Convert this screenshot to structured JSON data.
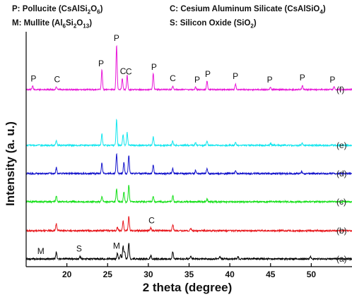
{
  "legend": [
    {
      "key": "P",
      "name": "Pollucite",
      "formula_parts": [
        [
          "CsAlSi",
          "n"
        ],
        [
          "2",
          "s"
        ],
        [
          "O",
          "n"
        ],
        [
          "6",
          "s"
        ]
      ]
    },
    {
      "key": "C",
      "name": "Cesium Aluminum Silicate",
      "formula_parts": [
        [
          "CsAlSiO",
          "n"
        ],
        [
          "4",
          "s"
        ]
      ]
    },
    {
      "key": "M",
      "name": "Mullite",
      "formula_parts": [
        [
          "Al",
          "n"
        ],
        [
          "6",
          "s"
        ],
        [
          "Si",
          "n"
        ],
        [
          "2",
          "s"
        ],
        [
          "O",
          "n"
        ],
        [
          "13",
          "s"
        ]
      ]
    },
    {
      "key": "S",
      "name": "Silicon Oxide",
      "formula_parts": [
        [
          "SiO",
          "n"
        ],
        [
          "2",
          "s"
        ]
      ]
    }
  ],
  "chart_data": {
    "type": "line",
    "xlabel": "2 theta (degree)",
    "ylabel": "Intensity (a. u.)",
    "xlim": [
      15,
      55
    ],
    "xticks": [
      20,
      25,
      30,
      35,
      40,
      45,
      50
    ],
    "y_ticks_shown": false,
    "series": [
      {
        "name": "(a)",
        "color": "#000000",
        "noise_amp": 1.0,
        "peaks": [
          [
            18.7,
            1.0
          ],
          [
            21.6,
            0.4
          ],
          [
            26.2,
            0.8
          ],
          [
            26.6,
            0.6
          ],
          [
            26.9,
            1.8
          ],
          [
            27.1,
            1.0
          ],
          [
            27.6,
            2.3
          ],
          [
            30.3,
            0.5
          ],
          [
            33.0,
            1.0
          ],
          [
            35.2,
            0.4
          ],
          [
            38.8,
            0.3
          ],
          [
            41.0,
            0.3
          ],
          [
            49.9,
            0.3
          ]
        ],
        "annotations": [
          {
            "text": "M",
            "x": 16.8
          },
          {
            "text": "S",
            "x": 21.5
          },
          {
            "text": "M",
            "x": 26.1
          }
        ]
      },
      {
        "name": "(b)",
        "color": "#e8191e",
        "noise_amp": 1.0,
        "peaks": [
          [
            18.7,
            1.0
          ],
          [
            26.2,
            0.5
          ],
          [
            26.9,
            1.4
          ],
          [
            27.6,
            2.0
          ],
          [
            30.3,
            0.4
          ],
          [
            33.0,
            0.9
          ],
          [
            35.2,
            0.3
          ]
        ],
        "annotations": [
          {
            "text": "C",
            "x": 30.4
          }
        ]
      },
      {
        "name": "(c)",
        "color": "#16e01a",
        "noise_amp": 1.0,
        "peaks": [
          [
            18.7,
            0.8
          ],
          [
            24.3,
            0.7
          ],
          [
            26.1,
            1.8
          ],
          [
            27.0,
            1.4
          ],
          [
            27.6,
            2.4
          ],
          [
            30.6,
            0.8
          ],
          [
            33.0,
            0.9
          ],
          [
            37.2,
            0.4
          ]
        ],
        "annotations": []
      },
      {
        "name": "(d)",
        "color": "#1616cc",
        "noise_amp": 1.0,
        "peaks": [
          [
            18.7,
            0.8
          ],
          [
            24.3,
            1.5
          ],
          [
            26.1,
            2.8
          ],
          [
            27.0,
            1.6
          ],
          [
            27.6,
            2.6
          ],
          [
            30.6,
            1.2
          ],
          [
            33.0,
            0.7
          ],
          [
            35.8,
            0.5
          ],
          [
            37.2,
            0.7
          ],
          [
            40.7,
            0.4
          ],
          [
            48.8,
            0.3
          ]
        ],
        "annotations": []
      },
      {
        "name": "(e)",
        "color": "#14e6ee",
        "noise_amp": 0.9,
        "peaks": [
          [
            18.7,
            0.7
          ],
          [
            24.3,
            1.6
          ],
          [
            26.1,
            3.7
          ],
          [
            26.9,
            1.5
          ],
          [
            27.4,
            1.8
          ],
          [
            30.6,
            1.2
          ],
          [
            33.0,
            0.6
          ],
          [
            35.8,
            0.4
          ],
          [
            37.2,
            0.6
          ],
          [
            40.7,
            0.4
          ],
          [
            45.0,
            0.3
          ],
          [
            48.9,
            0.3
          ]
        ],
        "annotations": []
      },
      {
        "name": "(f)",
        "color": "#e818d8",
        "noise_amp": 0.8,
        "peaks": [
          [
            15.8,
            0.5
          ],
          [
            18.7,
            0.4
          ],
          [
            24.3,
            2.8
          ],
          [
            26.1,
            6.2
          ],
          [
            26.8,
            1.6
          ],
          [
            27.4,
            2.0
          ],
          [
            30.6,
            2.3
          ],
          [
            33.0,
            0.5
          ],
          [
            35.8,
            0.4
          ],
          [
            37.2,
            1.2
          ],
          [
            40.7,
            0.8
          ],
          [
            45.0,
            0.3
          ],
          [
            48.9,
            0.6
          ],
          [
            52.8,
            0.4
          ]
        ],
        "annotations": [
          {
            "text": "P",
            "x": 15.9
          },
          {
            "text": "C",
            "x": 18.8
          },
          {
            "text": "P",
            "x": 24.2
          },
          {
            "text": "P",
            "x": 26.1
          },
          {
            "text": "C",
            "x": 26.9
          },
          {
            "text": "C",
            "x": 27.6
          },
          {
            "text": "P",
            "x": 30.7
          },
          {
            "text": "C",
            "x": 33.0
          },
          {
            "text": "P",
            "x": 36.0
          },
          {
            "text": "P",
            "x": 37.3
          },
          {
            "text": "P",
            "x": 40.7
          },
          {
            "text": "P",
            "x": 44.9
          },
          {
            "text": "P",
            "x": 48.9
          },
          {
            "text": "P",
            "x": 52.6
          }
        ]
      }
    ]
  }
}
